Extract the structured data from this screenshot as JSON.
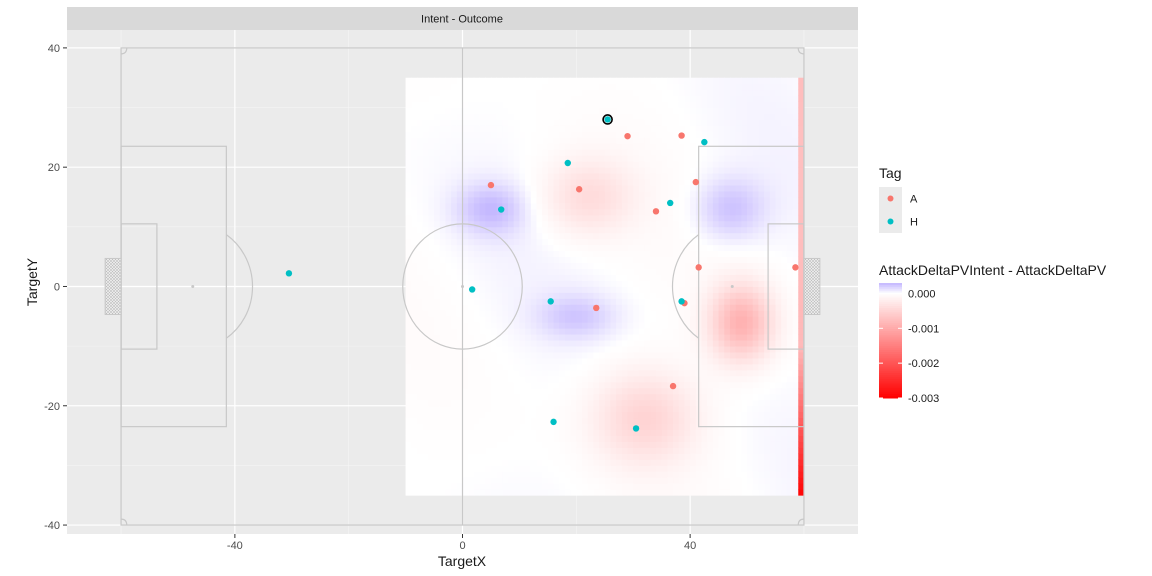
{
  "chart_data": {
    "type": "scatter",
    "facet_title": "Intent - Outcome",
    "xlabel": "TargetX",
    "ylabel": "TargetY",
    "xlim": [
      -69.5,
      69.5
    ],
    "ylim": [
      -41.5,
      43
    ],
    "x_ticks": [
      -40,
      0,
      40
    ],
    "y_ticks": [
      -40,
      -20,
      0,
      20,
      40
    ],
    "x_tick_labels": [
      "-40",
      "0",
      "40"
    ],
    "y_tick_labels": [
      "-40",
      "-20",
      "0",
      "20",
      "40"
    ],
    "grid": true,
    "legend_position": "right",
    "pitch": {
      "x_range": [
        -60,
        60
      ],
      "y_range": [
        -40,
        40
      ],
      "penalty_box_depth": 18.5,
      "penalty_box_half_width": 23.5,
      "six_yard_depth": 6.3,
      "six_yard_half_width": 10.5,
      "goal_half_width": 4.7,
      "goal_depth": 2.8,
      "centre_circle_radius": 10.5,
      "penalty_spot_distance": 12.6,
      "line_color": "#c8c8c8"
    },
    "heatmap": {
      "fill_variable": "AttackDeltaPVIntent - AttackDeltaPV",
      "x_range": [
        -10,
        60
      ],
      "y_range": [
        -35,
        35
      ],
      "scale": {
        "low": -0.003,
        "mid": 0.0,
        "high": 0.0003,
        "low_color": "#ff0000",
        "mid_color": "#ffffff",
        "high_color": "#c2b5ff"
      }
    },
    "series": [
      {
        "name": "A",
        "color": "#f8766d",
        "x": [
          29,
          38.5,
          5,
          20.5,
          41,
          34,
          39,
          41.5,
          58.5,
          23.5,
          37
        ],
        "y": [
          25.2,
          25.3,
          17,
          16.3,
          17.5,
          12.6,
          -2.8,
          3.2,
          3.2,
          -3.6,
          -16.7
        ]
      },
      {
        "name": "H",
        "color": "#00bfc4",
        "x": [
          25.5,
          42.5,
          18.5,
          6.8,
          36.5,
          -30.5,
          1.7,
          15.5,
          38.5,
          16,
          30.5
        ],
        "y": [
          28,
          24.2,
          20.7,
          12.9,
          14,
          2.2,
          -0.5,
          -2.5,
          -2.5,
          -22.7,
          -23.8
        ]
      }
    ],
    "highlight_point": {
      "x": 25.5,
      "y": 28
    },
    "legend": {
      "tag_title": "Tag",
      "tag_labels": [
        "A",
        "H"
      ],
      "fill_title": "AttackDeltaPVIntent - AttackDeltaPV",
      "fill_breaks": [
        0.0,
        -0.001,
        -0.002,
        -0.003
      ],
      "fill_labels": [
        "0.000",
        "-0.001",
        "-0.002",
        "-0.003"
      ]
    }
  }
}
